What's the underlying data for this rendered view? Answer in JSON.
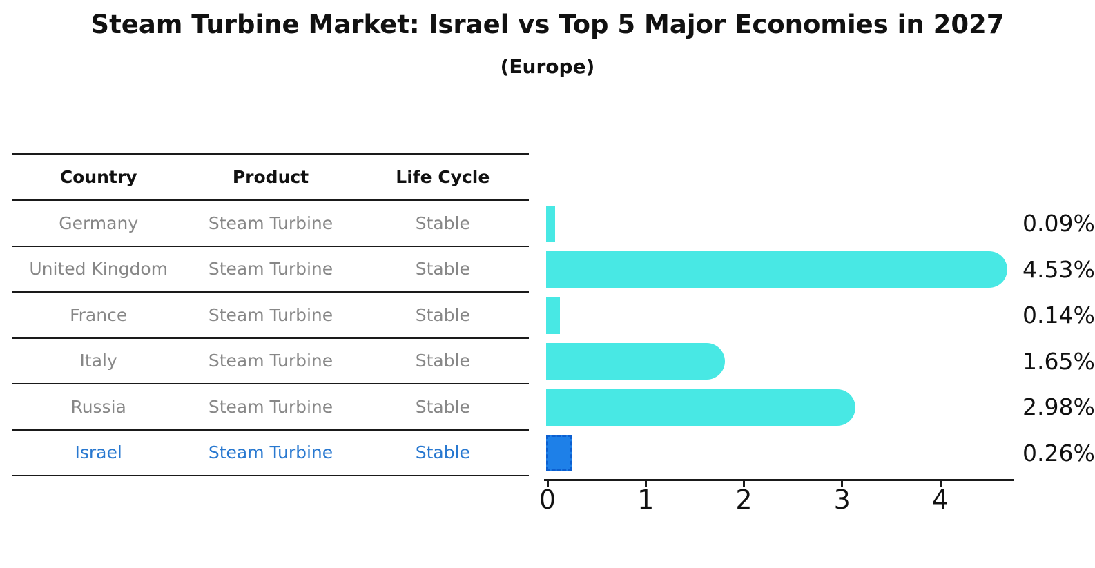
{
  "title": "Steam Turbine Market: Israel vs Top 5 Major Economies in 2027",
  "subtitle": "(Europe)",
  "table": {
    "headers": [
      "Country",
      "Product",
      "Life Cycle"
    ],
    "rows": [
      {
        "country": "Germany",
        "product": "Steam Turbine",
        "life_cycle": "Stable",
        "highlighted": false
      },
      {
        "country": "United Kingdom",
        "product": "Steam Turbine",
        "life_cycle": "Stable",
        "highlighted": false
      },
      {
        "country": "France",
        "product": "Steam Turbine",
        "life_cycle": "Stable",
        "highlighted": false
      },
      {
        "country": "Italy",
        "product": "Steam Turbine",
        "life_cycle": "Stable",
        "highlighted": false
      },
      {
        "country": "Russia",
        "product": "Steam Turbine",
        "life_cycle": "Stable",
        "highlighted": false
      },
      {
        "country": "Israel",
        "product": "Steam Turbine",
        "life_cycle": "Stable",
        "highlighted": true
      }
    ]
  },
  "chart_data": {
    "type": "bar",
    "orientation": "horizontal",
    "title": "Steam Turbine Market: Israel vs Top 5 Major Economies in 2027",
    "subtitle": "(Europe)",
    "categories": [
      "Germany",
      "United Kingdom",
      "France",
      "Italy",
      "Russia",
      "Israel"
    ],
    "values": [
      0.09,
      4.53,
      0.14,
      1.65,
      2.98,
      0.26
    ],
    "value_labels": [
      "0.09%",
      "4.53%",
      "0.14%",
      "1.65%",
      "2.98%",
      "0.26%"
    ],
    "xlabel": "",
    "ylabel": "",
    "xlim": [
      0,
      4.75
    ],
    "x_ticks": [
      0,
      1,
      2,
      3,
      4
    ],
    "x_tick_labels": [
      "0",
      "1",
      "2",
      "3",
      "4"
    ],
    "grid": false,
    "legend": false,
    "highlight_category": "Israel",
    "colors": {
      "bar": "#48E8E4",
      "highlight_fill": "#1E80E8",
      "highlight_border": "#0C5FD0",
      "highlight_text": "#2878D0",
      "row_text": "#878787",
      "header_text": "#111111",
      "background": "#FFFFFF"
    }
  }
}
